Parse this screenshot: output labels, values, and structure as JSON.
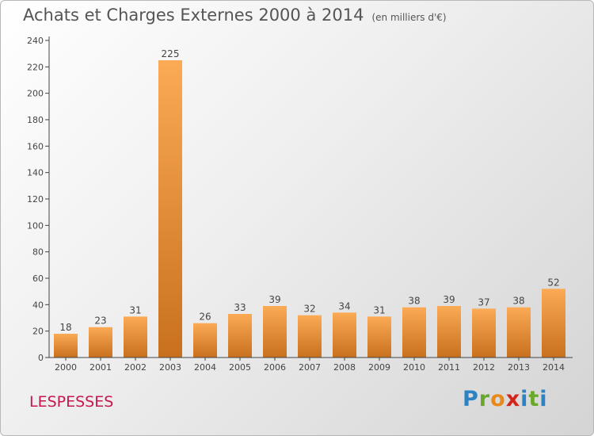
{
  "header": {
    "title": "Achats et Charges Externes 2000 à 2014",
    "unit": "(en milliers d'€)"
  },
  "footer": {
    "commune": "LESPESSES",
    "brand": [
      "P",
      "r",
      "o",
      "x",
      "i",
      "t",
      "i"
    ]
  },
  "colors": {
    "bar_light": "#fbaa55",
    "bar_dark": "#c8701e",
    "commune": "#c8174e"
  },
  "chart_data": {
    "type": "bar",
    "title": "Achats et Charges Externes 2000 à 2014",
    "subtitle": "(en milliers d'€)",
    "categories": [
      "2000",
      "2001",
      "2002",
      "2003",
      "2004",
      "2005",
      "2006",
      "2007",
      "2008",
      "2009",
      "2010",
      "2011",
      "2012",
      "2013",
      "2014"
    ],
    "values": [
      18,
      23,
      31,
      225,
      26,
      33,
      39,
      32,
      34,
      31,
      38,
      39,
      37,
      38,
      52
    ],
    "ylim": [
      0,
      240
    ],
    "yticks": [
      0,
      20,
      40,
      60,
      80,
      100,
      120,
      140,
      160,
      180,
      200,
      220,
      240
    ],
    "grid": false,
    "data_labels": true
  }
}
